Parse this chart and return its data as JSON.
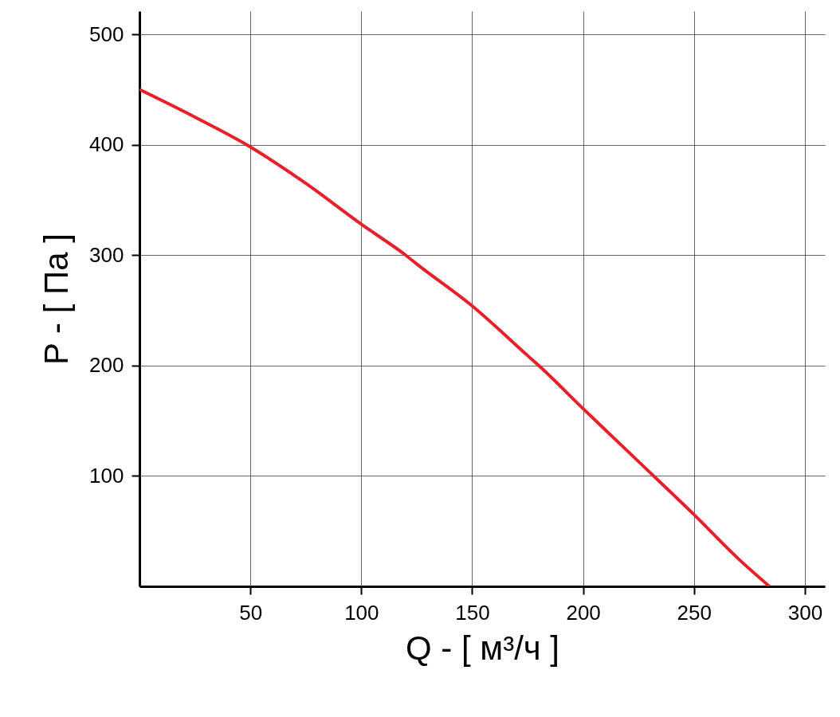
{
  "chart_data": {
    "type": "line",
    "xlabel": "Q - [ м³/ч ]",
    "ylabel": "P - [ Па ]",
    "x": [
      0,
      25,
      50,
      75,
      100,
      120,
      125,
      150,
      175,
      180,
      200,
      225,
      250,
      270,
      284
    ],
    "series": [
      {
        "color": "#e8202a",
        "values": [
          450,
          425,
          398,
          365,
          328,
          300,
          292,
          254,
          209,
          200,
          161,
          113,
          65,
          25,
          0
        ]
      }
    ],
    "xlim": [
      0,
      309
    ],
    "ylim": [
      0,
      521
    ],
    "xticks": [
      50,
      100,
      150,
      200,
      250,
      300
    ],
    "yticks": [
      100,
      200,
      300,
      400,
      500
    ],
    "grid": true,
    "marker": "none",
    "line_style": "solid"
  }
}
